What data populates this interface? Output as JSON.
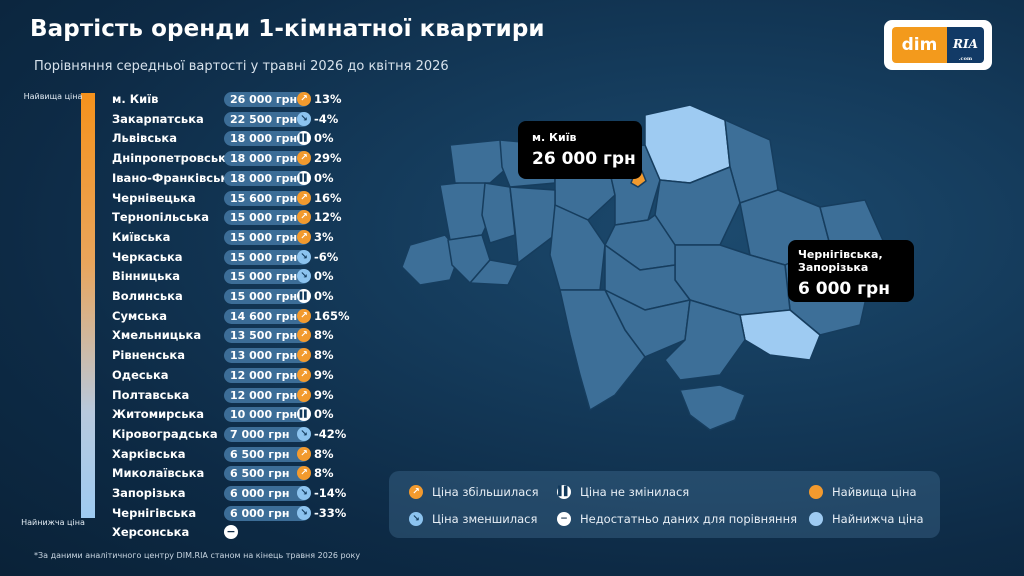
{
  "title": "Вартість оренди 1-кімнатної квартири",
  "subtitle": "Порівняння середньої вартості у травні 2026 до квітня 2026",
  "logo": {
    "left": "dim",
    "right": "RIA",
    "right_small": ".com"
  },
  "scale": {
    "top_label": "Найвища ціна",
    "bottom_label": "Найнижча ціна"
  },
  "footnote": "*За даними аналітичного центру DIM.RIA станом на кінець травня 2026 року",
  "colors": {
    "highest": "#f29a2e",
    "lowest": "#9ecbf2",
    "region_fill": "#3d6f98",
    "region_stroke": "#163d5e",
    "pill": "#3c6d97"
  },
  "chart_data": {
    "type": "table",
    "currency_unit": "грн",
    "rows": [
      {
        "region": "м. Київ",
        "price": "26 000 грн",
        "change": "13%",
        "trend": "up"
      },
      {
        "region": "Закарпатська",
        "price": "22 500 грн",
        "change": "-4%",
        "trend": "down"
      },
      {
        "region": "Львівська",
        "price": "18 000 грн",
        "change": "0%",
        "trend": "same"
      },
      {
        "region": "Дніпропетровська",
        "price": "18 000 грн",
        "change": "29%",
        "trend": "up"
      },
      {
        "region": "Івано-Франківська",
        "price": "18 000 грн",
        "change": "0%",
        "trend": "same"
      },
      {
        "region": "Чернівецька",
        "price": "15 600 грн",
        "change": "16%",
        "trend": "up"
      },
      {
        "region": "Тернопільська",
        "price": "15 000 грн",
        "change": "12%",
        "trend": "up"
      },
      {
        "region": "Київська",
        "price": "15 000 грн",
        "change": "3%",
        "trend": "up"
      },
      {
        "region": "Черкаська",
        "price": "15 000 грн",
        "change": "-6%",
        "trend": "down"
      },
      {
        "region": "Вінницька",
        "price": "15 000 грн",
        "change": "0%",
        "trend": "down"
      },
      {
        "region": "Волинська",
        "price": "15 000 грн",
        "change": "0%",
        "trend": "same"
      },
      {
        "region": "Сумська",
        "price": "14 600 грн",
        "change": "165%",
        "trend": "up"
      },
      {
        "region": "Хмельницька",
        "price": "13 500 грн",
        "change": "8%",
        "trend": "up"
      },
      {
        "region": "Рівненська",
        "price": "13 000 грн",
        "change": "8%",
        "trend": "up"
      },
      {
        "region": "Одеська",
        "price": "12 000 грн",
        "change": "9%",
        "trend": "up"
      },
      {
        "region": "Полтавська",
        "price": "12 000 грн",
        "change": "9%",
        "trend": "up"
      },
      {
        "region": "Житомирська",
        "price": "10 000 грн",
        "change": "0%",
        "trend": "same"
      },
      {
        "region": "Кіровоградська",
        "price": "7 000 грн",
        "change": "-42%",
        "trend": "down"
      },
      {
        "region": "Харківська",
        "price": "6 500 грн",
        "change": "8%",
        "trend": "up"
      },
      {
        "region": "Миколаївська",
        "price": "6 500 грн",
        "change": "8%",
        "trend": "up"
      },
      {
        "region": "Запорізька",
        "price": "6 000 грн",
        "change": "-14%",
        "trend": "down"
      },
      {
        "region": "Чернігівська",
        "price": "6 000 грн",
        "change": "-33%",
        "trend": "down"
      },
      {
        "region": "Херсонська",
        "price": "",
        "change": "",
        "trend": "na"
      }
    ]
  },
  "map": {
    "highlight_high": {
      "region": "м. Київ",
      "label": "м. Київ",
      "price": "26 000 грн"
    },
    "highlight_low": {
      "regions": [
        "Чернігівська",
        "Запорізька"
      ],
      "label": "Чернігівська, Запорізька",
      "label_line1": "Чернігівська,",
      "label_line2": "Запорізька",
      "price": "6 000 грн"
    }
  },
  "legend": {
    "up": "Ціна збільшилася",
    "same": "Ціна не змінилася",
    "highest": "Найвища ціна",
    "down": "Ціна зменшилася",
    "na": "Недостатньо даних для порівняння",
    "lowest": "Найнижча ціна"
  },
  "icons": {
    "up": "arrow-up-right-icon",
    "down": "arrow-down-right-icon",
    "same": "pause-icon",
    "na": "minus-icon"
  }
}
